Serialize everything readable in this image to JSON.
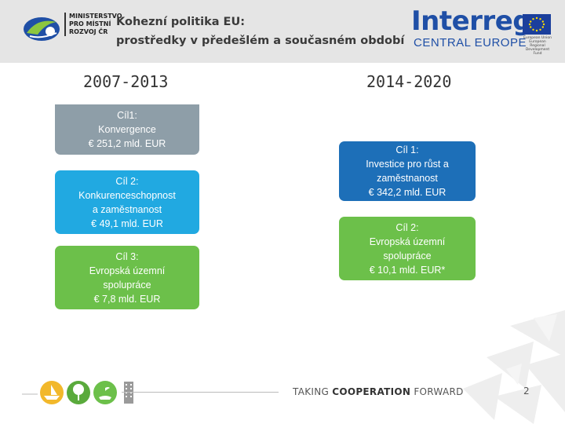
{
  "header": {
    "ministry_logo": {
      "lines": [
        "MINISTERSTVO",
        "PRO MÍSTNÍ",
        "ROZVOJ ČR"
      ]
    },
    "title_line1": "Kohezní politika EU:",
    "title_line2": "prostředky v předešlém a současném období",
    "interreg_logo": {
      "word": "Interreg",
      "subtitle": "CENTRAL EUROPE",
      "eu_fine_print": [
        "European Union",
        "European Regional",
        "Development Fund"
      ],
      "brand_color": "#1f4fa6"
    }
  },
  "left_column": {
    "heading": "2007-2013",
    "boxes": [
      {
        "lines": [
          "Cíl1:",
          "Konvergence",
          "€ 251,2 mld. EUR"
        ],
        "color": "#8e9ea8"
      },
      {
        "lines": [
          "Cíl 2:",
          "Konkurenceschopnost",
          "a zaměstnanost",
          "€ 49,1 mld. EUR"
        ],
        "color": "#21a9e1"
      },
      {
        "lines": [
          "Cíl 3:",
          "Evropská územní",
          "spolupráce",
          "€ 7,8 mld. EUR"
        ],
        "color": "#6cc04a"
      }
    ]
  },
  "right_column": {
    "heading": "2014-2020",
    "boxes": [
      {
        "lines": [
          "Cíl 1:",
          "Investice pro růst a",
          "zaměstnanost",
          "€ 342,2 mld. EUR"
        ],
        "color": "#1d6fb8"
      },
      {
        "lines": [
          "Cíl 2:",
          "Evropská územní",
          "spolupráce",
          "€ 10,1 mld. EUR*"
        ],
        "color": "#6cc04a"
      }
    ]
  },
  "footer": {
    "tagline_part1": "TAKING ",
    "tagline_bold": "COOPERATION",
    "tagline_part2": " FORWARD",
    "page_number": "2",
    "icons": [
      "boat-icon",
      "tree-icon",
      "hand-plant-icon",
      "building-icon"
    ]
  }
}
